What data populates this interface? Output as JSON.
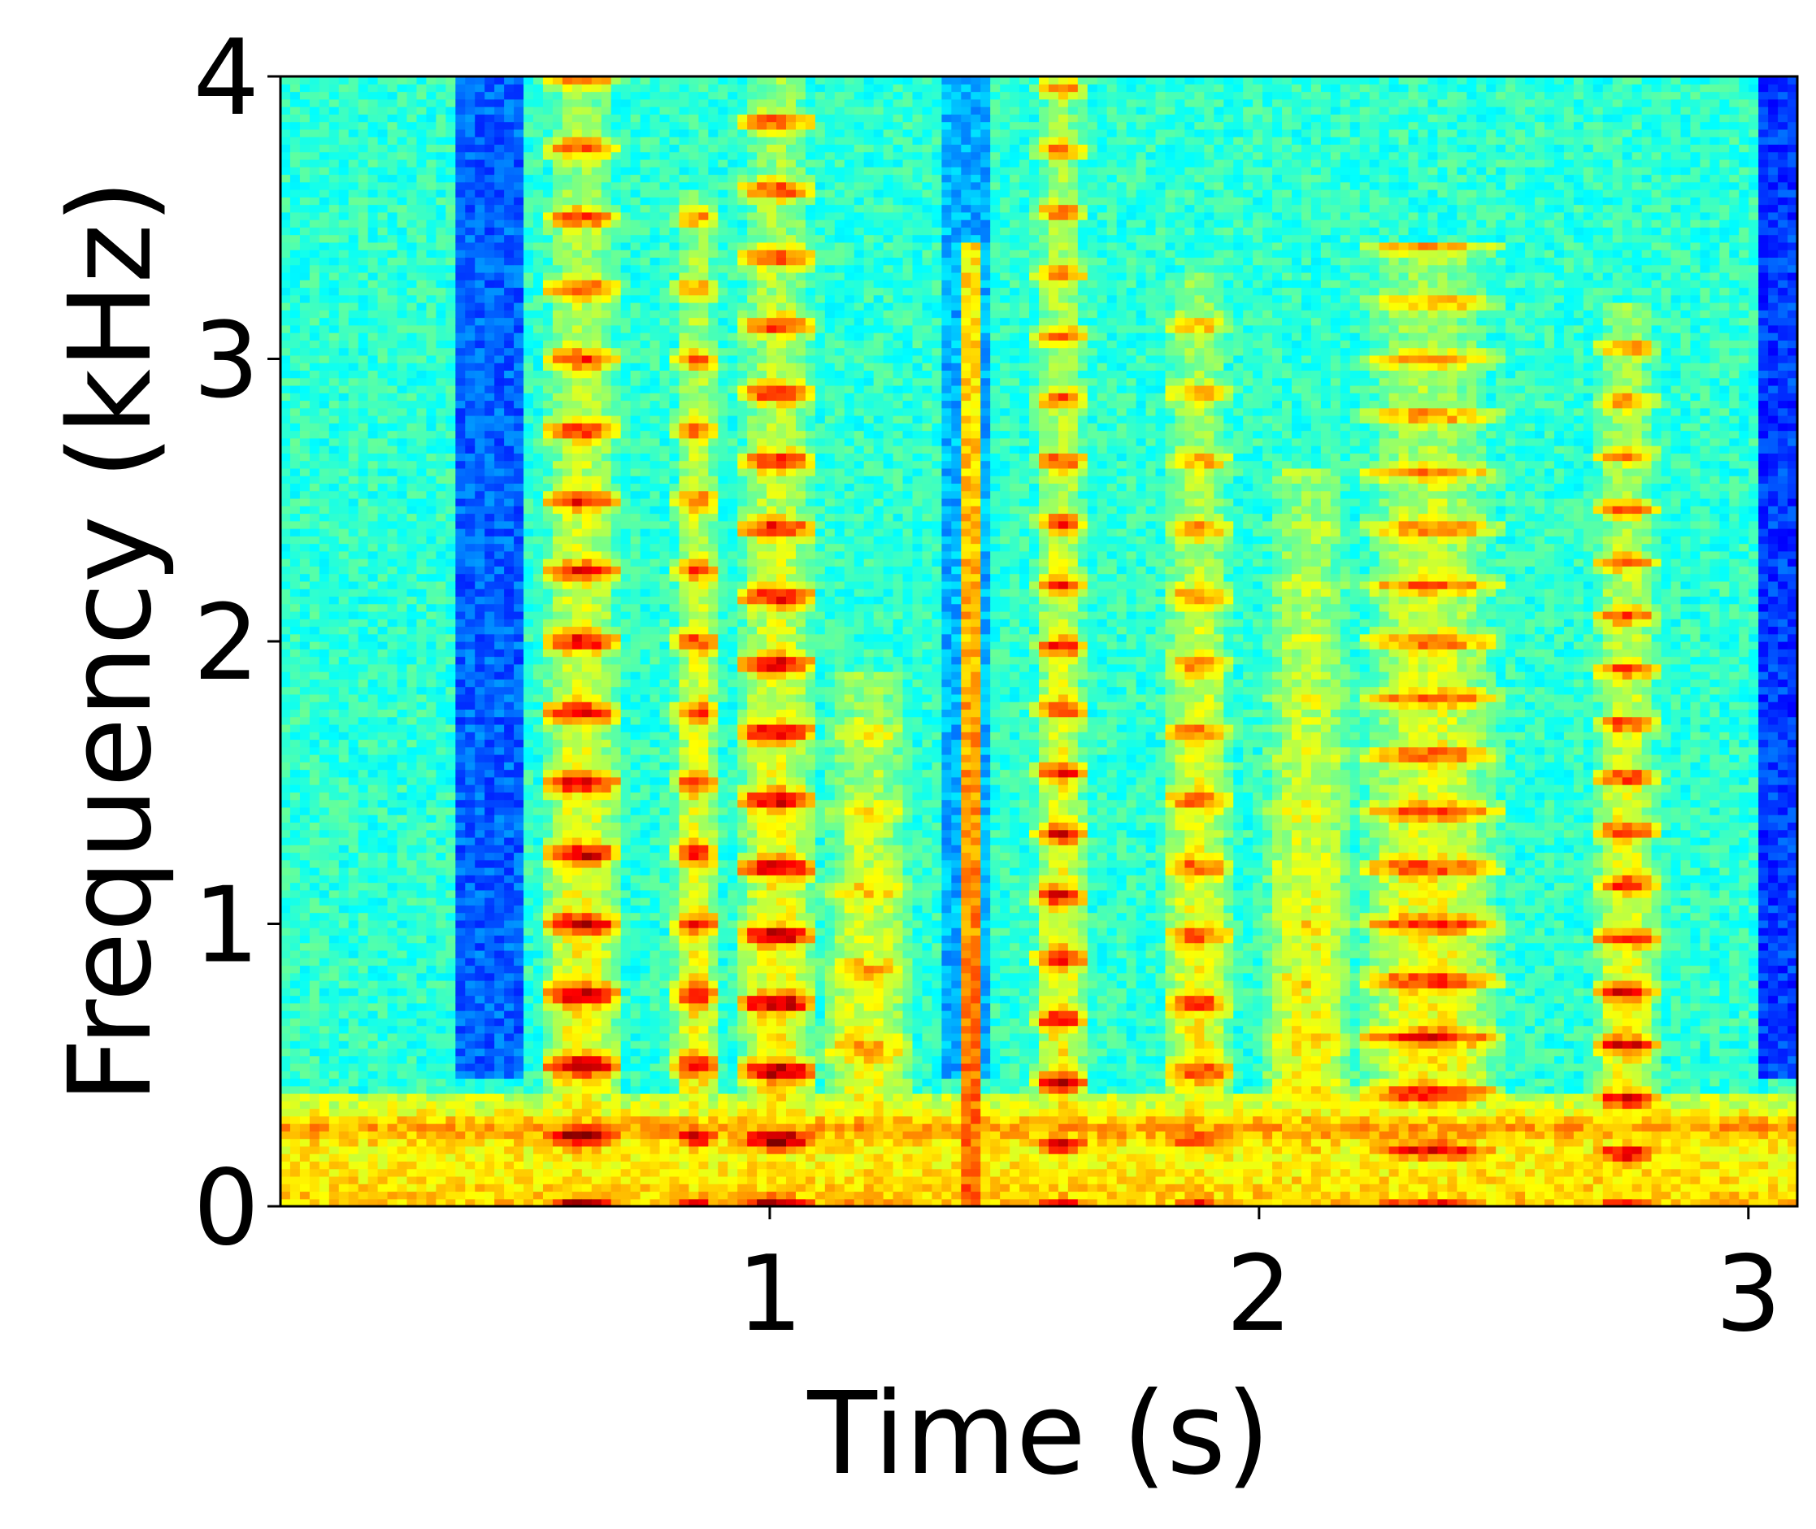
{
  "chart_data": {
    "type": "heatmap",
    "title": "",
    "xlabel": "Time (s)",
    "ylabel": "Frequency (kHz)",
    "xlim": [
      0,
      3.1
    ],
    "ylim": [
      0,
      4
    ],
    "x_ticks": [
      1,
      2,
      3
    ],
    "y_ticks": [
      0,
      1,
      2,
      3,
      4
    ],
    "x_tick_labels": [
      "1",
      "2",
      "3"
    ],
    "y_tick_labels": [
      "0",
      "1",
      "2",
      "3",
      "4"
    ],
    "grid": false,
    "legend": "none",
    "colormap": "jet",
    "colormap_stops": [
      "#00007f",
      "#0000ff",
      "#007fff",
      "#00ffff",
      "#7fff7f",
      "#ffff00",
      "#ff7f00",
      "#ff0000",
      "#7f0000"
    ],
    "frame_color": "#000000",
    "value_range": [
      0,
      1
    ],
    "noise_floor": {
      "base": 0.42,
      "low_band_kHz": [
        0,
        0.4
      ],
      "low_band_level": 0.68,
      "hum_kHz": 0.28,
      "hum_level": 0.8
    },
    "quiet_regions": [
      {
        "t_start": 0.36,
        "t_end": 0.5,
        "level": 0.22
      },
      {
        "t_start": 1.35,
        "t_end": 1.45,
        "level": 0.3
      },
      {
        "t_start": 3.02,
        "t_end": 3.1,
        "level": 0.18
      }
    ],
    "voiced_segments": [
      {
        "t_start": 0.53,
        "t_end": 0.7,
        "f0_kHz": 0.25,
        "intensity": 0.95,
        "max_kHz": 4.0
      },
      {
        "t_start": 0.8,
        "t_end": 0.9,
        "f0_kHz": 0.25,
        "intensity": 0.88,
        "max_kHz": 3.6
      },
      {
        "t_start": 0.93,
        "t_end": 1.1,
        "f0_kHz": 0.24,
        "intensity": 0.97,
        "max_kHz": 4.0
      },
      {
        "t_start": 1.1,
        "t_end": 1.3,
        "f0_kHz": 0.28,
        "intensity": 0.72,
        "max_kHz": 1.9
      },
      {
        "t_start": 1.54,
        "t_end": 1.65,
        "f0_kHz": 0.22,
        "intensity": 0.92,
        "max_kHz": 4.0
      },
      {
        "t_start": 1.8,
        "t_end": 1.95,
        "f0_kHz": 0.24,
        "intensity": 0.82,
        "max_kHz": 3.3
      },
      {
        "t_start": 2.0,
        "t_end": 2.2,
        "f0_kHz": 0.2,
        "intensity": 0.66,
        "max_kHz": 2.6
      },
      {
        "t_start": 2.2,
        "t_end": 2.5,
        "f0_kHz": 0.2,
        "intensity": 0.86,
        "max_kHz": 3.4
      },
      {
        "t_start": 2.68,
        "t_end": 2.82,
        "f0_kHz": 0.19,
        "intensity": 0.9,
        "max_kHz": 3.2
      }
    ],
    "bright_columns": [
      {
        "t_start": 1.4,
        "t_end": 1.44,
        "intensity": 0.78,
        "max_kHz": 3.4
      }
    ]
  }
}
